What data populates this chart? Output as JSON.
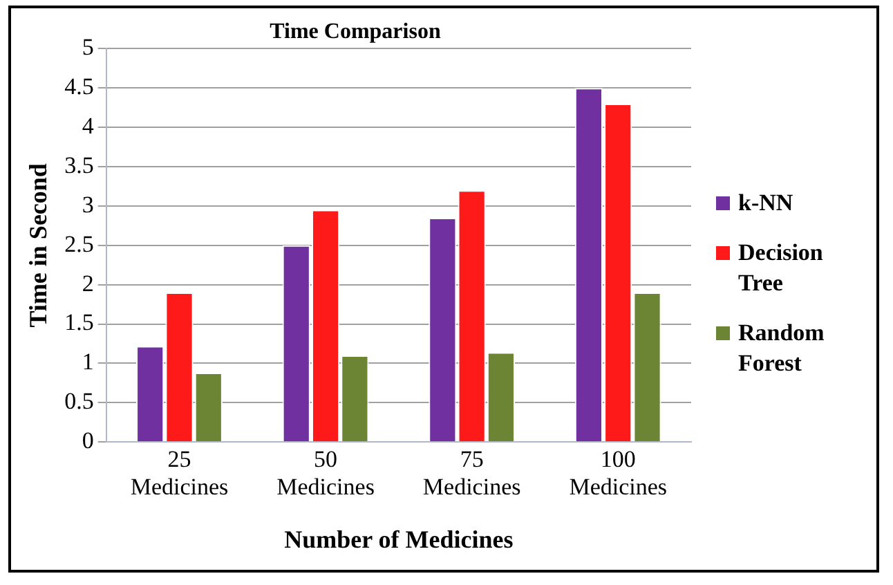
{
  "chart_data": {
    "type": "bar",
    "title": "Time Comparison",
    "xlabel": "Number of Medicines",
    "ylabel": "Time in Second",
    "categories": [
      "25 Medicines",
      "50 Medicines",
      "75 Medicines",
      "100 Medicines"
    ],
    "series": [
      {
        "name": "k-NN",
        "color": "#7030a0",
        "values": [
          1.22,
          2.5,
          2.85,
          4.5
        ]
      },
      {
        "name": "Decision Tree",
        "color": "#ff1a1a",
        "values": [
          1.9,
          2.95,
          3.2,
          4.3
        ]
      },
      {
        "name": "Random Forest",
        "color": "#6b8535",
        "values": [
          0.88,
          1.1,
          1.14,
          1.9
        ]
      }
    ],
    "ylim": [
      0,
      5
    ],
    "yticks": [
      0,
      0.5,
      1,
      1.5,
      2,
      2.5,
      3,
      3.5,
      4,
      4.5,
      5
    ],
    "grid": "y",
    "legend": "right"
  }
}
